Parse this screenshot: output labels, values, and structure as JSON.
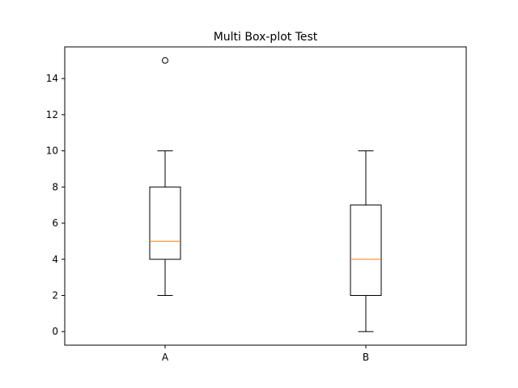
{
  "chart_data": {
    "type": "boxplot",
    "title": "Multi Box-plot Test",
    "xlabel": "",
    "ylabel": "",
    "categories": [
      "A",
      "B"
    ],
    "ylim": [
      -0.75,
      15.75
    ],
    "yticks": [
      "0",
      "2",
      "4",
      "6",
      "8",
      "10",
      "12",
      "14"
    ],
    "grid": false,
    "boxes": [
      {
        "label": "A",
        "whisker_low": 2,
        "q1": 4,
        "median": 5,
        "q3": 8,
        "whisker_high": 10,
        "outliers": [
          15
        ]
      },
      {
        "label": "B",
        "whisker_low": 0,
        "q1": 2,
        "median": 4,
        "q3": 7,
        "whisker_high": 10,
        "outliers": []
      }
    ],
    "colors": {
      "box": "#000000",
      "median": "#ff7f0e",
      "frame": "#000000"
    }
  }
}
